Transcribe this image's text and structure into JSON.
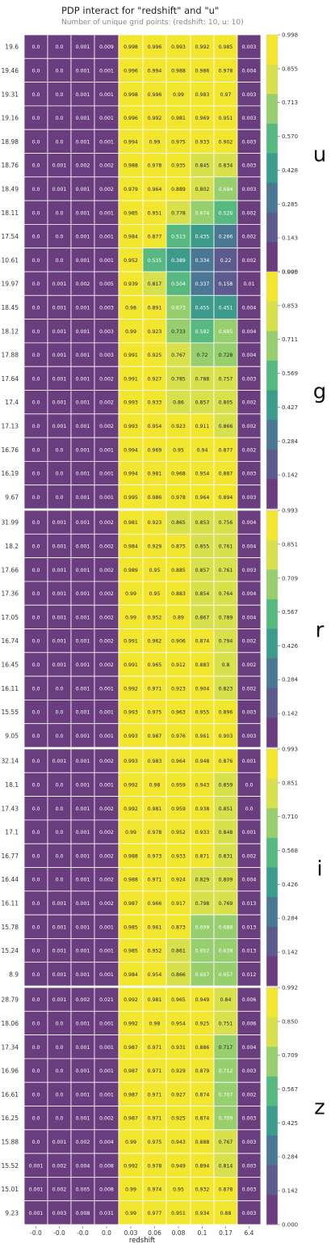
{
  "title": "PDP interact for \"redshift\" and \"u\"",
  "subtitle": "Number of unique grid points: (redshift: 10, u: 10)",
  "chart_data": {
    "type": "heatmap",
    "xlabel": "redshift",
    "x_ticks": [
      "-0.0",
      "-0.0",
      "-0.0",
      "0.0",
      "0.03",
      "0.06",
      "0.08",
      "0.1",
      "0.17",
      "6.4"
    ],
    "colorscale": [
      "#6a3d7e",
      "#5d5a8e",
      "#4a7894",
      "#3d9b8c",
      "#58b980",
      "#98cf6e",
      "#d8e04c",
      "#f2e62e"
    ],
    "panels": [
      {
        "label": "u",
        "rows": [
          "19.6",
          "19.46",
          "19.31",
          "19.16",
          "18.98",
          "18.76",
          "18.49",
          "18.11",
          "17.54",
          "10.61"
        ],
        "values": [
          [
            "0.0",
            "0.0",
            "0.001",
            "0.009",
            "0.998",
            "0.996",
            "0.993",
            "0.992",
            "0.985",
            "0.003"
          ],
          [
            "0.0",
            "0.0",
            "0.001",
            "0.001",
            "0.996",
            "0.994",
            "0.988",
            "0.986",
            "0.978",
            "0.004"
          ],
          [
            "0.0",
            "0.0",
            "0.001",
            "0.001",
            "0.998",
            "0.996",
            "0.99",
            "0.983",
            "0.97",
            "0.003"
          ],
          [
            "0.0",
            "0.0",
            "0.001",
            "0.001",
            "0.996",
            "0.992",
            "0.981",
            "0.969",
            "0.951",
            "0.003"
          ],
          [
            "0.0",
            "0.0",
            "0.001",
            "0.001",
            "0.994",
            "0.99",
            "0.975",
            "0.933",
            "0.902",
            "0.003"
          ],
          [
            "0.0",
            "0.001",
            "0.002",
            "0.002",
            "0.988",
            "0.978",
            "0.935",
            "0.845",
            "0.834",
            "0.003"
          ],
          [
            "0.0",
            "0.001",
            "0.001",
            "0.002",
            "0.979",
            "0.964",
            "0.889",
            "0.802",
            "0.694",
            "0.003"
          ],
          [
            "0.0",
            "0.0",
            "0.001",
            "0.001",
            "0.985",
            "0.951",
            "0.778",
            "0.674",
            "0.526",
            "0.002"
          ],
          [
            "0.0",
            "0.0",
            "0.001",
            "0.001",
            "0.984",
            "0.877",
            "0.513",
            "0.435",
            "0.266",
            "0.002"
          ],
          [
            "0.0",
            "0.0",
            "0.001",
            "0.001",
            "0.952",
            "0.535",
            "0.389",
            "0.334",
            "0.22",
            "0.002"
          ]
        ],
        "colorbar_ticks": [
          "0.998",
          "0.855",
          "0.713",
          "0.570",
          "0.428",
          "0.285",
          "0.143",
          "0.000"
        ],
        "vmax": 0.998
      },
      {
        "label": "g",
        "rows": [
          "19.97",
          "18.45",
          "18.12",
          "17.88",
          "17.64",
          "17.4",
          "17.13",
          "16.76",
          "16.19",
          "9.67"
        ],
        "values": [
          [
            "0.0",
            "0.001",
            "0.002",
            "0.005",
            "0.939",
            "0.817",
            "0.504",
            "0.337",
            "0.158",
            "0.01"
          ],
          [
            "0.0",
            "0.001",
            "0.001",
            "0.003",
            "0.98",
            "0.891",
            "0.673",
            "0.455",
            "0.451",
            "0.004"
          ],
          [
            "0.0",
            "0.001",
            "0.001",
            "0.003",
            "0.99",
            "0.923",
            "0.733",
            "0.592",
            "0.685",
            "0.004"
          ],
          [
            "0.0",
            "0.001",
            "0.001",
            "0.003",
            "0.991",
            "0.925",
            "0.767",
            "0.72",
            "0.728",
            "0.004"
          ],
          [
            "0.0",
            "0.001",
            "0.001",
            "0.002",
            "0.991",
            "0.927",
            "0.785",
            "0.788",
            "0.757",
            "0.003"
          ],
          [
            "0.0",
            "0.001",
            "0.001",
            "0.002",
            "0.993",
            "0.933",
            "0.86",
            "0.857",
            "0.805",
            "0.002"
          ],
          [
            "0.0",
            "0.001",
            "0.001",
            "0.002",
            "0.993",
            "0.954",
            "0.923",
            "0.911",
            "0.866",
            "0.002"
          ],
          [
            "0.0",
            "0.0",
            "0.001",
            "0.001",
            "0.994",
            "0.969",
            "0.95",
            "0.94",
            "0.877",
            "0.002"
          ],
          [
            "0.0",
            "0.0",
            "0.001",
            "0.001",
            "0.994",
            "0.981",
            "0.968",
            "0.954",
            "0.887",
            "0.003"
          ],
          [
            "0.0",
            "0.0",
            "0.001",
            "0.001",
            "0.995",
            "0.986",
            "0.978",
            "0.964",
            "0.894",
            "0.003"
          ]
        ],
        "colorbar_ticks": [
          "0.995",
          "0.853",
          "0.711",
          "0.569",
          "0.427",
          "0.284",
          "0.142"
        ],
        "vmax": 0.995
      },
      {
        "label": "r",
        "rows": [
          "31.99",
          "18.2",
          "17.66",
          "17.36",
          "17.05",
          "16.74",
          "16.45",
          "16.11",
          "15.55",
          "9.05"
        ],
        "values": [
          [
            "0.0",
            "0.001",
            "0.001",
            "0.002",
            "0.981",
            "0.923",
            "0.865",
            "0.853",
            "0.756",
            "0.004"
          ],
          [
            "0.0",
            "0.001",
            "0.001",
            "0.002",
            "0.984",
            "0.929",
            "0.875",
            "0.855",
            "0.761",
            "0.004"
          ],
          [
            "0.0",
            "0.001",
            "0.001",
            "0.002",
            "0.989",
            "0.95",
            "0.885",
            "0.857",
            "0.761",
            "0.003"
          ],
          [
            "0.0",
            "0.001",
            "0.001",
            "0.002",
            "0.99",
            "0.95",
            "0.883",
            "0.854",
            "0.764",
            "0.004"
          ],
          [
            "0.0",
            "0.001",
            "0.001",
            "0.002",
            "0.99",
            "0.952",
            "0.89",
            "0.867",
            "0.789",
            "0.004"
          ],
          [
            "0.0",
            "0.001",
            "0.001",
            "0.002",
            "0.991",
            "0.962",
            "0.906",
            "0.874",
            "0.794",
            "0.002"
          ],
          [
            "0.0",
            "0.001",
            "0.001",
            "0.002",
            "0.991",
            "0.965",
            "0.912",
            "0.883",
            "0.8",
            "0.002"
          ],
          [
            "0.0",
            "0.0",
            "0.001",
            "0.001",
            "0.992",
            "0.971",
            "0.923",
            "0.904",
            "0.823",
            "0.002"
          ],
          [
            "0.0",
            "0.0",
            "0.001",
            "0.001",
            "0.993",
            "0.975",
            "0.963",
            "0.955",
            "0.896",
            "0.003"
          ],
          [
            "0.0",
            "0.0",
            "0.001",
            "0.001",
            "0.993",
            "0.987",
            "0.976",
            "0.961",
            "0.903",
            "0.003"
          ]
        ],
        "colorbar_ticks": [
          "0.993",
          "0.851",
          "0.709",
          "0.567",
          "0.426",
          "0.284",
          "0.142"
        ],
        "vmax": 0.993
      },
      {
        "label": "i",
        "rows": [
          "32.14",
          "18.1",
          "17.43",
          "17.1",
          "16.77",
          "16.44",
          "16.11",
          "15.78",
          "15.24",
          "8.9"
        ],
        "values": [
          [
            "0.0",
            "0.001",
            "0.001",
            "0.002",
            "0.993",
            "0.983",
            "0.964",
            "0.948",
            "0.876",
            "0.001"
          ],
          [
            "0.0",
            "0.0",
            "0.001",
            "0.001",
            "0.992",
            "0.98",
            "0.959",
            "0.943",
            "0.859",
            "0.0"
          ],
          [
            "0.0",
            "0.0",
            "0.001",
            "0.002",
            "0.992",
            "0.981",
            "0.959",
            "0.938",
            "0.851",
            "0.0"
          ],
          [
            "0.0",
            "0.0",
            "0.001",
            "0.002",
            "0.99",
            "0.978",
            "0.952",
            "0.933",
            "0.848",
            "0.001"
          ],
          [
            "0.0",
            "0.0",
            "0.001",
            "0.002",
            "0.988",
            "0.973",
            "0.933",
            "0.871",
            "0.831",
            "0.002"
          ],
          [
            "0.0",
            "0.0",
            "0.001",
            "0.002",
            "0.988",
            "0.971",
            "0.924",
            "0.829",
            "0.809",
            "0.004"
          ],
          [
            "0.0",
            "0.001",
            "0.001",
            "0.002",
            "0.987",
            "0.966",
            "0.917",
            "0.798",
            "0.769",
            "0.013"
          ],
          [
            "0.0",
            "0.001",
            "0.001",
            "0.001",
            "0.985",
            "0.961",
            "0.873",
            "0.699",
            "0.688",
            "0.013"
          ],
          [
            "0.0",
            "0.001",
            "0.001",
            "0.001",
            "0.985",
            "0.952",
            "0.861",
            "0.652",
            "0.638",
            "0.013"
          ],
          [
            "0.0",
            "0.001",
            "0.001",
            "0.001",
            "0.984",
            "0.954",
            "0.866",
            "0.667",
            "0.657",
            "0.012"
          ]
        ],
        "colorbar_ticks": [
          "0.993",
          "0.851",
          "0.710",
          "0.568",
          "0.426",
          "0.284",
          "0.142"
        ],
        "vmax": 0.993
      },
      {
        "label": "z",
        "rows": [
          "28.79",
          "18.06",
          "17.34",
          "16.96",
          "16.61",
          "16.25",
          "15.88",
          "15.52",
          "15.01",
          "9.23"
        ],
        "values": [
          [
            "0.0",
            "0.001",
            "0.002",
            "0.021",
            "0.992",
            "0.981",
            "0.965",
            "0.949",
            "0.84",
            "0.006"
          ],
          [
            "0.0",
            "0.0",
            "0.001",
            "0.001",
            "0.992",
            "0.98",
            "0.954",
            "0.925",
            "0.751",
            "0.006"
          ],
          [
            "0.0",
            "0.0",
            "0.001",
            "0.001",
            "0.987",
            "0.971",
            "0.931",
            "0.886",
            "0.717",
            "0.004"
          ],
          [
            "0.0",
            "0.0",
            "0.001",
            "0.001",
            "0.987",
            "0.971",
            "0.929",
            "0.879",
            "0.712",
            "0.003"
          ],
          [
            "0.0",
            "0.0",
            "0.001",
            "0.001",
            "0.987",
            "0.971",
            "0.927",
            "0.874",
            "0.707",
            "0.002"
          ],
          [
            "0.0",
            "0.0",
            "0.001",
            "0.002",
            "0.987",
            "0.971",
            "0.925",
            "0.874",
            "0.709",
            "0.003"
          ],
          [
            "0.0",
            "0.001",
            "0.002",
            "0.004",
            "0.99",
            "0.975",
            "0.943",
            "0.888",
            "0.767",
            "0.003"
          ],
          [
            "0.001",
            "0.002",
            "0.004",
            "0.008",
            "0.992",
            "0.978",
            "0.949",
            "0.894",
            "0.814",
            "0.003"
          ],
          [
            "0.001",
            "0.002",
            "0.005",
            "0.008",
            "0.99",
            "0.974",
            "0.95",
            "0.932",
            "0.878",
            "0.003"
          ],
          [
            "0.001",
            "0.003",
            "0.008",
            "0.031",
            "0.99",
            "0.977",
            "0.951",
            "0.934",
            "0.88",
            "0.003"
          ]
        ],
        "colorbar_ticks": [
          "0.992",
          "0.850",
          "0.709",
          "0.567",
          "0.425",
          "0.284",
          "0.142",
          "0.000"
        ],
        "vmax": 0.992
      }
    ]
  }
}
